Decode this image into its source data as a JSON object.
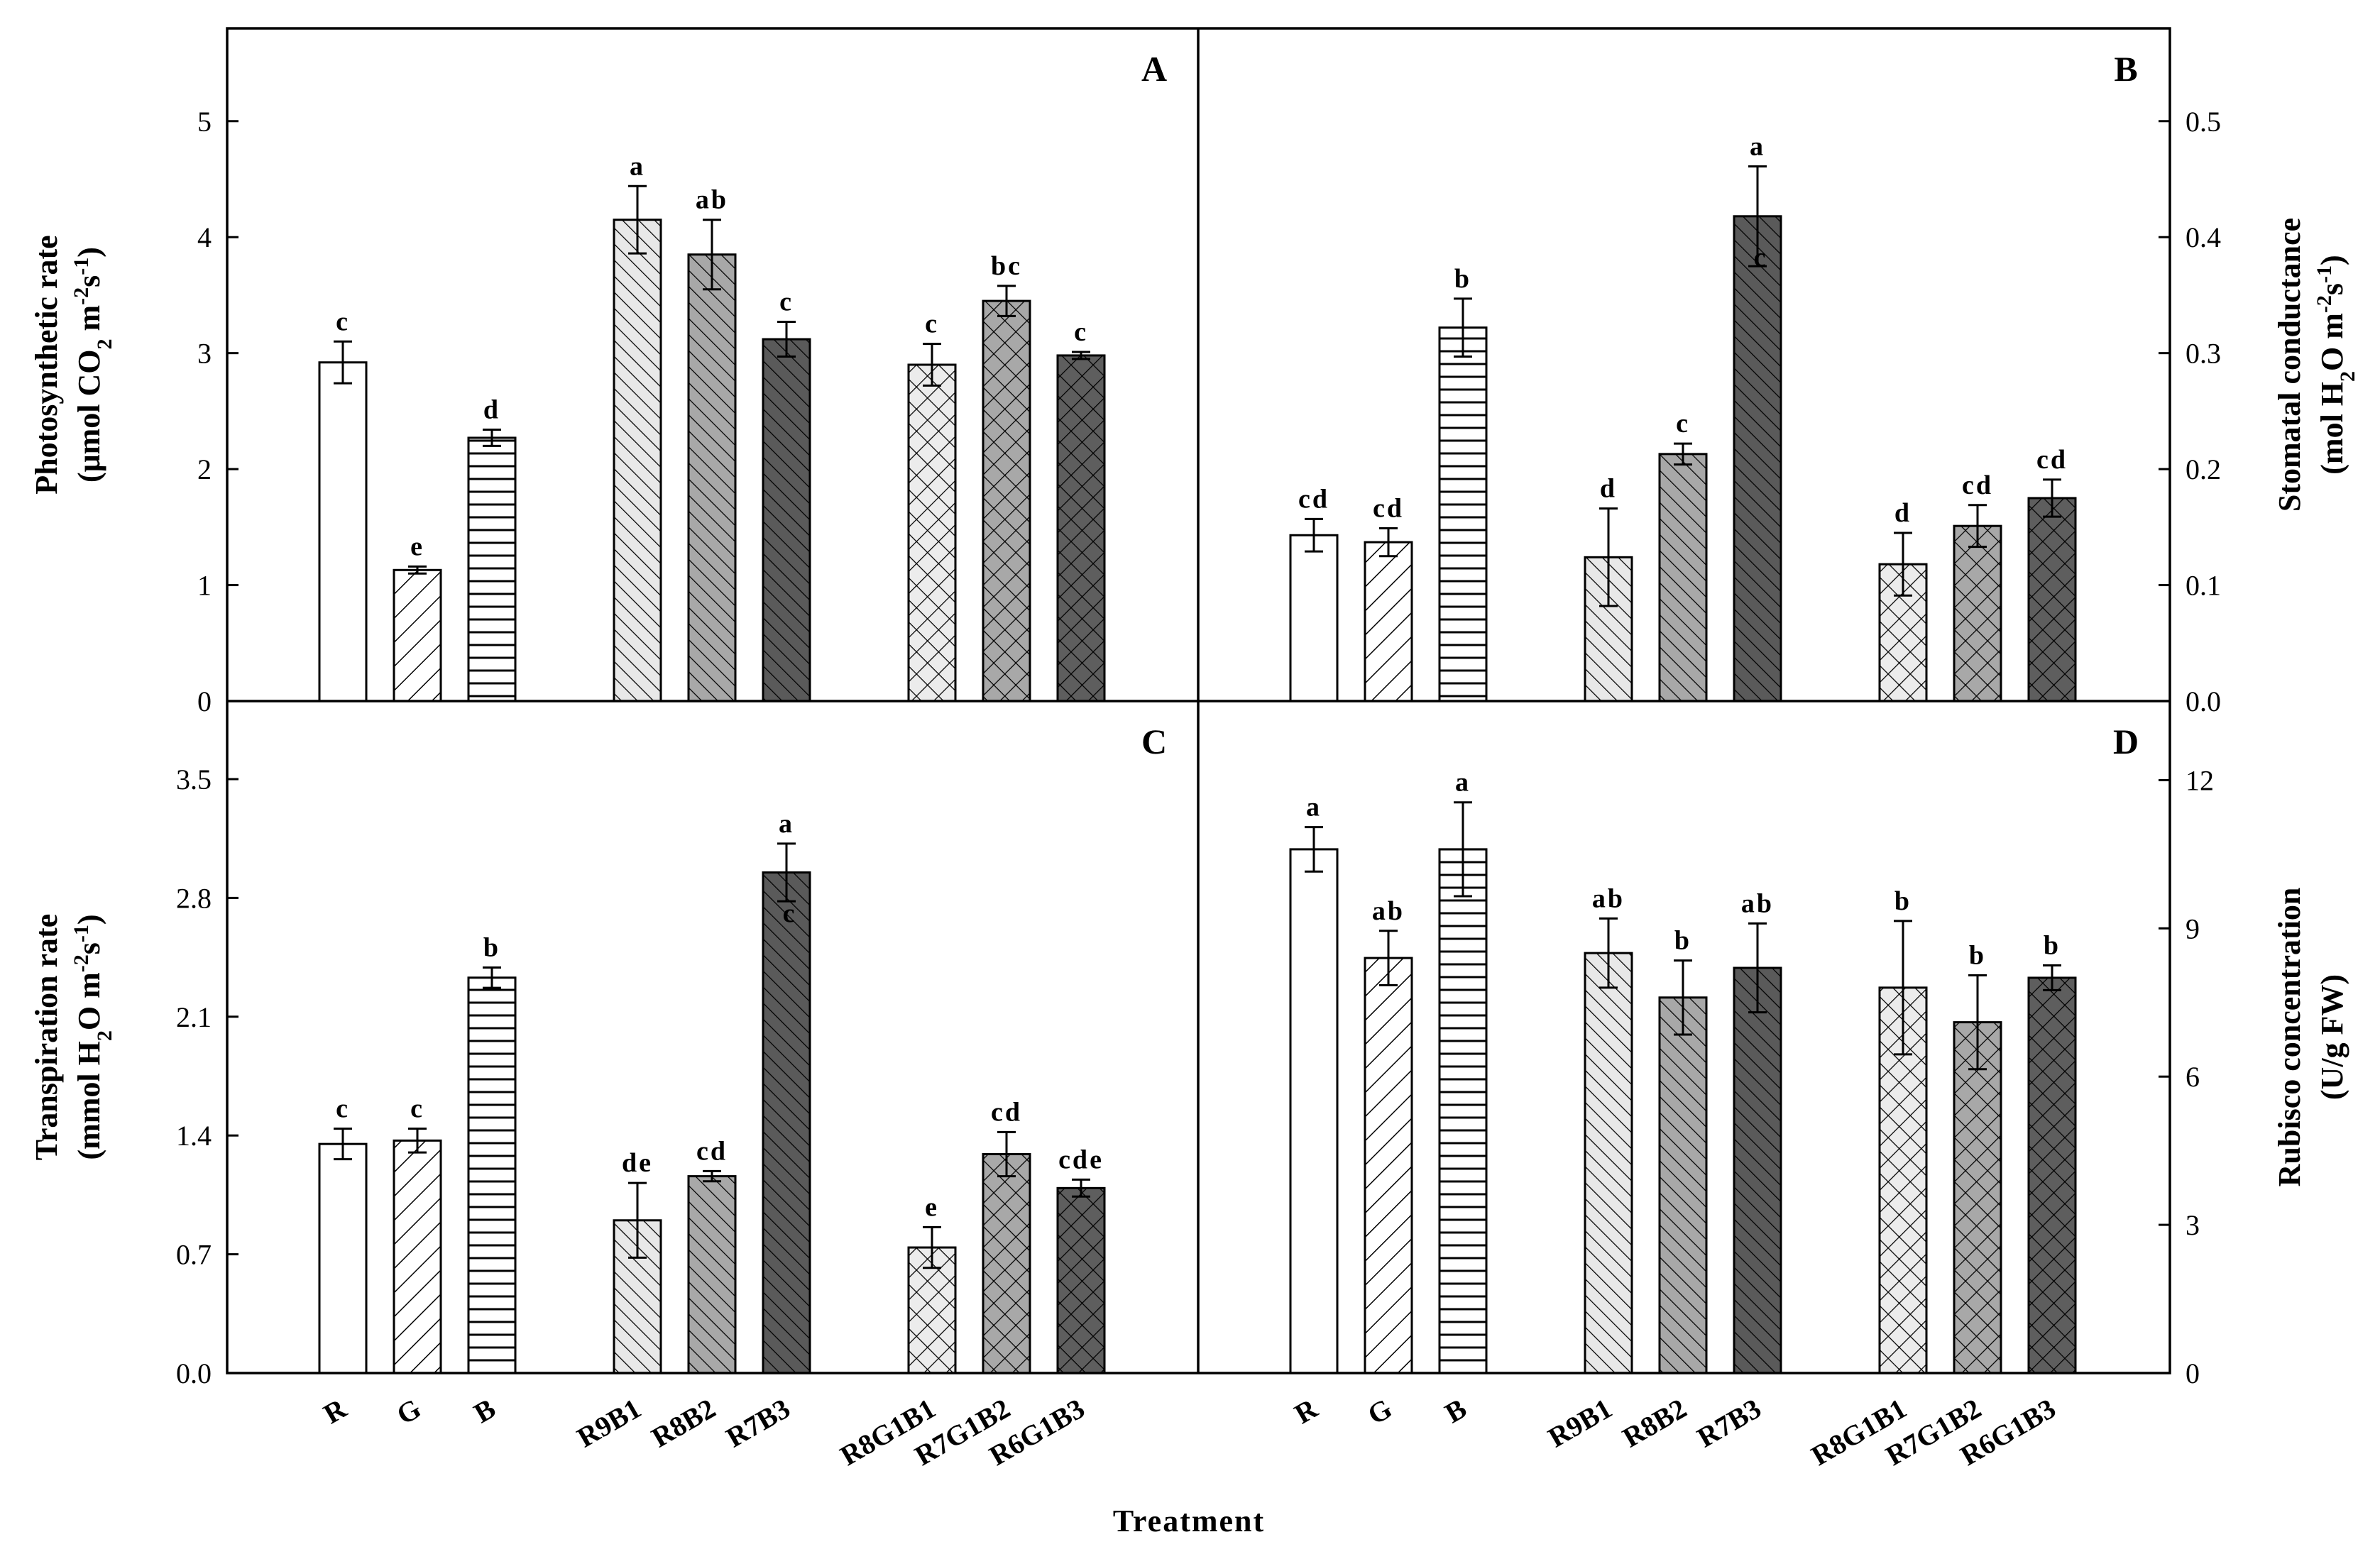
{
  "figure": {
    "x_title": "Treatment"
  },
  "chart_data": [
    {
      "type": "bar",
      "panel": "A",
      "position": "top-left",
      "y_side": "left",
      "ylabel_lines": [
        "Photosynthetic rate",
        "(μmol CO₂ m⁻²s⁻¹)"
      ],
      "ylim": [
        0,
        5.8
      ],
      "yticks": [
        0,
        1,
        2,
        3,
        4,
        5
      ],
      "ytick_labels": [
        "0",
        "1",
        "2",
        "3",
        "4",
        "5"
      ],
      "categories": [
        "R",
        "G",
        "B",
        "R9B1",
        "R8B2",
        "R7B3",
        "R8G1B1",
        "R7G1B2",
        "R6G1B3"
      ],
      "values": [
        2.92,
        1.13,
        2.27,
        4.15,
        3.85,
        3.12,
        2.9,
        3.45,
        2.98
      ],
      "errors": [
        0.18,
        0.03,
        0.07,
        0.29,
        0.3,
        0.15,
        0.18,
        0.13,
        0.03
      ],
      "letters": [
        "c",
        "e",
        "d",
        "a",
        "ab",
        "c",
        "c",
        "bc",
        "c"
      ]
    },
    {
      "type": "bar",
      "panel": "B",
      "position": "top-right",
      "y_side": "right",
      "ylabel_lines": [
        "Stomatal conductance",
        "(mol H₂O m⁻²s⁻¹)"
      ],
      "ylim": [
        0,
        0.58
      ],
      "yticks": [
        0,
        0.1,
        0.2,
        0.3,
        0.4,
        0.5
      ],
      "ytick_labels": [
        "0.0",
        "0.1",
        "0.2",
        "0.3",
        "0.4",
        "0.5"
      ],
      "categories": [
        "R",
        "G",
        "B",
        "R9B1",
        "R8B2",
        "R7B3",
        "R8G1B1",
        "R7G1B2",
        "R6G1B3"
      ],
      "values": [
        0.143,
        0.137,
        0.322,
        0.124,
        0.213,
        0.418,
        0.118,
        0.151,
        0.175
      ],
      "errors": [
        0.014,
        0.012,
        0.025,
        0.042,
        0.009,
        0.043,
        0.027,
        0.018,
        0.016
      ],
      "letters": [
        "cd",
        "cd",
        "b",
        "d",
        "c",
        "a",
        "d",
        "cd",
        "cd"
      ],
      "inner_annotations": [
        {
          "category": "R7B3",
          "text": "c"
        }
      ]
    },
    {
      "type": "bar",
      "panel": "C",
      "position": "bottom-left",
      "y_side": "left",
      "ylabel_lines": [
        "Transpiration rate",
        "(mmol H₂O m⁻²s⁻¹)"
      ],
      "ylim": [
        0,
        3.96
      ],
      "yticks": [
        0,
        0.7,
        1.4,
        2.1,
        2.8,
        3.5
      ],
      "ytick_labels": [
        "0.0",
        "0.7",
        "1.4",
        "2.1",
        "2.8",
        "3.5"
      ],
      "categories": [
        "R",
        "G",
        "B",
        "R9B1",
        "R8B2",
        "R7B3",
        "R8G1B1",
        "R7G1B2",
        "R6G1B3"
      ],
      "values": [
        1.35,
        1.37,
        2.33,
        0.9,
        1.16,
        2.95,
        0.74,
        1.29,
        1.09
      ],
      "errors": [
        0.09,
        0.07,
        0.06,
        0.22,
        0.03,
        0.17,
        0.12,
        0.13,
        0.05
      ],
      "letters": [
        "c",
        "c",
        "b",
        "de",
        "cd",
        "a",
        "e",
        "cd",
        "cde"
      ],
      "inner_annotations": [
        {
          "category": "R7B3",
          "text": "c"
        }
      ]
    },
    {
      "type": "bar",
      "panel": "D",
      "position": "bottom-right",
      "y_side": "right",
      "ylabel_lines": [
        "Rubisco concentration",
        "(U/g FW)"
      ],
      "ylim": [
        0,
        13.6
      ],
      "yticks": [
        0,
        3,
        6,
        9,
        12
      ],
      "ytick_labels": [
        "0",
        "3",
        "6",
        "9",
        "12"
      ],
      "categories": [
        "R",
        "G",
        "B",
        "R9B1",
        "R8B2",
        "R7B3",
        "R8G1B1",
        "R7G1B2",
        "R6G1B3"
      ],
      "values": [
        10.6,
        8.4,
        10.6,
        8.5,
        7.6,
        8.2,
        7.8,
        7.1,
        8.0
      ],
      "errors": [
        0.45,
        0.55,
        0.95,
        0.7,
        0.75,
        0.9,
        1.35,
        0.95,
        0.25
      ],
      "letters": [
        "a",
        "ab",
        "a",
        "ab",
        "b",
        "ab",
        "b",
        "b",
        "b"
      ]
    }
  ]
}
